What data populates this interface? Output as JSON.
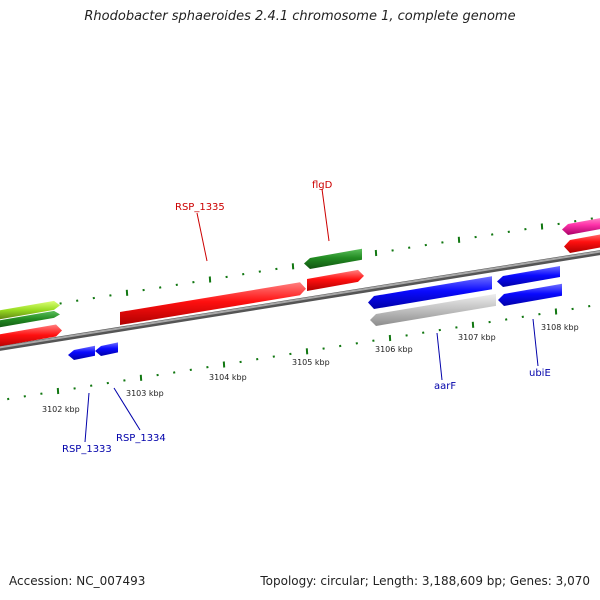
{
  "title": "Rhodobacter sphaeroides 2.4.1 chromosome 1, complete genome",
  "footer": {
    "accession": "Accession: NC_007493",
    "summary": "Topology: circular; Length: 3,188,609 bp; Genes: 3,070"
  },
  "kbp_labels": [
    "3102 kbp",
    "3103 kbp",
    "3104 kbp",
    "3105 kbp",
    "3106 kbp",
    "3107 kbp",
    "3108 kbp"
  ],
  "gene_labels": [
    {
      "text": "RSP_1335",
      "color": "#cc0000"
    },
    {
      "text": "flgD",
      "color": "#cc0000"
    },
    {
      "text": "RSP_1333",
      "color": "#0000aa"
    },
    {
      "text": "RSP_1334",
      "color": "#0000aa"
    },
    {
      "text": "aarF",
      "color": "#0000aa"
    },
    {
      "text": "ubiE",
      "color": "#0000aa"
    }
  ],
  "colors": {
    "forward_gene": "#ff0000",
    "reverse_gene": "#0000ff",
    "rna_gene": "#228b22",
    "pseudo_gene": "#c0c0c0",
    "yellow_green_gene": "#99dd22",
    "pink_gene": "#ff33aa",
    "tick": "#117711",
    "backbone": "#808080"
  }
}
